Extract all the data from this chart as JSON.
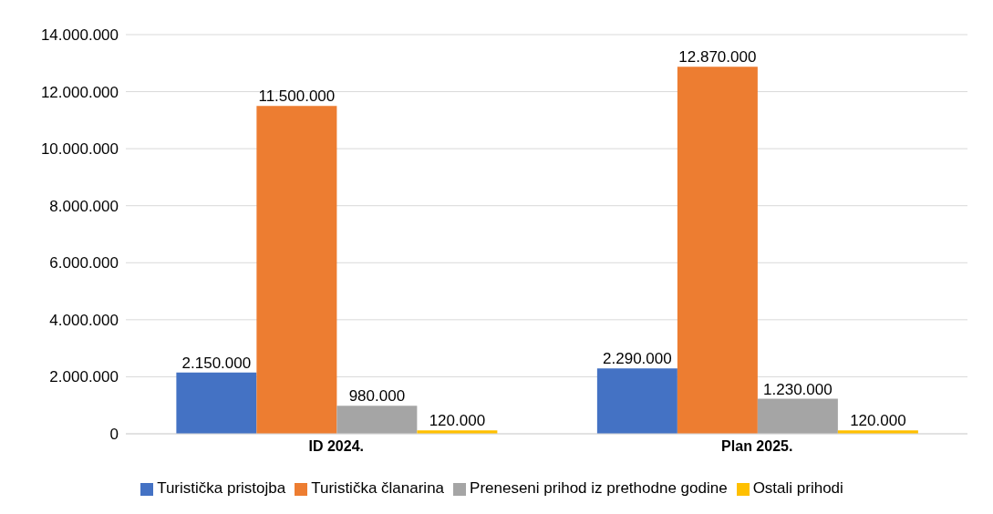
{
  "chart_data": {
    "type": "bar",
    "categories": [
      "ID 2024.",
      "Plan 2025."
    ],
    "series": [
      {
        "name": "Turistička pristojba",
        "color": "#4472c4",
        "values": [
          2150000,
          2290000
        ],
        "value_labels": [
          "2.150.000",
          "2.290.000"
        ]
      },
      {
        "name": "Turistička članarina",
        "color": "#ed7d31",
        "values": [
          11500000,
          12870000
        ],
        "value_labels": [
          "11.500.000",
          "12.870.000"
        ]
      },
      {
        "name": "Preneseni prihod iz prethodne godine",
        "color": "#a5a5a5",
        "values": [
          980000,
          1230000
        ],
        "value_labels": [
          "980.000",
          "1.230.000"
        ]
      },
      {
        "name": "Ostali prihodi",
        "color": "#ffc000",
        "values": [
          120000,
          120000
        ],
        "value_labels": [
          "120.000",
          "120.000"
        ]
      }
    ],
    "ylim": [
      0,
      14000000
    ],
    "yticks": [
      {
        "value": 0,
        "label": "0"
      },
      {
        "value": 2000000,
        "label": "2.000.000"
      },
      {
        "value": 4000000,
        "label": "4.000.000"
      },
      {
        "value": 6000000,
        "label": "6.000.000"
      },
      {
        "value": 8000000,
        "label": "8.000.000"
      },
      {
        "value": 10000000,
        "label": "10.000.000"
      },
      {
        "value": 12000000,
        "label": "12.000.000"
      },
      {
        "value": 14000000,
        "label": "14.000.000"
      }
    ],
    "grid": "y",
    "legend": "bottom"
  }
}
